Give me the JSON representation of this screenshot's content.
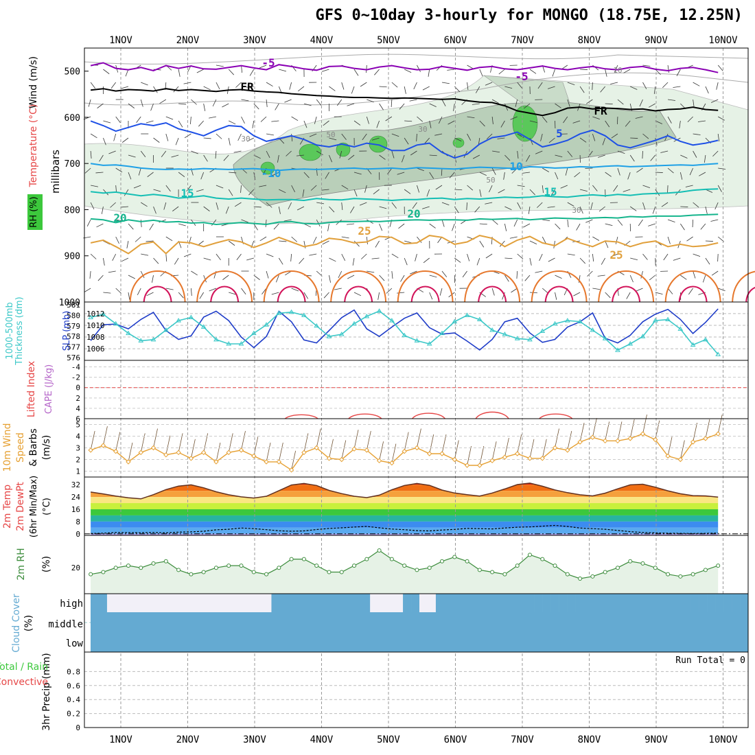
{
  "title": "GFS 0~10day 3-hourly for MONGO (18.75E, 12.25N)",
  "days": [
    "1NOV",
    "2NOV",
    "3NOV",
    "4NOV",
    "5NOV",
    "6NOV",
    "7NOV",
    "8NOV",
    "9NOV",
    "10NOV"
  ],
  "chart_data": [
    {
      "type": "line",
      "panel": "upper-air",
      "ylabel_parts": [
        "Wind (m/s)",
        "Temperature (°C)",
        "RH (%)"
      ],
      "ylabel_axis": "millibars",
      "y_ticks": [
        "500",
        "600",
        "700",
        "800",
        "900",
        "1000"
      ],
      "ylim": [
        450,
        1000
      ],
      "isotherm_labels": [
        "-5",
        "-5",
        "FR",
        "FR",
        "5",
        "-10",
        "10",
        "15",
        "15",
        "20",
        "20",
        "25",
        "25"
      ],
      "rh_labels": [
        "30",
        "50",
        "30",
        "50",
        "10",
        "30"
      ],
      "series": [
        {
          "name": "-5",
          "color": "#8a00b4",
          "values": [
            488,
            482,
            494,
            497,
            492,
            499,
            488,
            494,
            489,
            495,
            496,
            492,
            488,
            493,
            497,
            486,
            490,
            495,
            498,
            490,
            489,
            494,
            497,
            491,
            488,
            493,
            497,
            496,
            490,
            494,
            498,
            492,
            490,
            495,
            497,
            493,
            489,
            494,
            497,
            493,
            490,
            495,
            497,
            492,
            490,
            496,
            499,
            494,
            492,
            497,
            503
          ]
        },
        {
          "name": "FR",
          "color": "#000000",
          "values": [
            541,
            538,
            543,
            540,
            541,
            543,
            538,
            542,
            540,
            542,
            544,
            541,
            540,
            543,
            545,
            546,
            549,
            551,
            553,
            554,
            556,
            557,
            557,
            558,
            559,
            558,
            559,
            560,
            561,
            560,
            564,
            567,
            568,
            575,
            586,
            591,
            596,
            590,
            580,
            578,
            582,
            580,
            581,
            583,
            582,
            586,
            583,
            582,
            578,
            583,
            585
          ]
        },
        {
          "name": "5",
          "color": "#1e50e6",
          "values": [
            608,
            618,
            630,
            622,
            614,
            618,
            612,
            625,
            632,
            640,
            628,
            618,
            620,
            640,
            652,
            646,
            640,
            648,
            660,
            664,
            658,
            664,
            656,
            660,
            672,
            672,
            660,
            656,
            676,
            688,
            680,
            658,
            644,
            640,
            632,
            648,
            664,
            658,
            650,
            636,
            628,
            640,
            660,
            666,
            658,
            650,
            640,
            652,
            660,
            656,
            650
          ]
        },
        {
          "name": "10",
          "color": "#1ea0e6",
          "values": [
            700,
            704,
            703,
            706,
            710,
            712,
            713,
            712,
            713,
            711,
            712,
            713,
            712,
            711,
            713,
            715,
            713,
            712,
            713,
            712,
            711,
            710,
            712,
            711,
            710,
            712,
            709,
            710,
            711,
            712,
            710,
            708,
            709,
            710,
            711,
            707,
            708,
            710,
            709,
            707,
            708,
            706,
            705,
            707,
            706,
            705,
            704,
            703,
            704,
            702,
            700
          ]
        },
        {
          "name": "15",
          "color": "#14beb4",
          "values": [
            761,
            764,
            762,
            766,
            770,
            767,
            770,
            775,
            773,
            770,
            775,
            777,
            775,
            777,
            779,
            778,
            778,
            780,
            776,
            778,
            779,
            776,
            777,
            778,
            780,
            778,
            778,
            776,
            775,
            778,
            776,
            777,
            775,
            773,
            774,
            773,
            770,
            772,
            773,
            770,
            768,
            770,
            767,
            769,
            766,
            765,
            764,
            762,
            758,
            756,
            755
          ]
        },
        {
          "name": "20",
          "color": "#14b48c",
          "values": [
            820,
            822,
            828,
            822,
            826,
            823,
            827,
            826,
            829,
            828,
            832,
            830,
            828,
            830,
            832,
            827,
            826,
            830,
            831,
            828,
            826,
            826,
            825,
            826,
            824,
            823,
            822,
            823,
            822,
            822,
            823,
            820,
            821,
            820,
            819,
            822,
            820,
            818,
            819,
            820,
            818,
            817,
            818,
            815,
            816,
            814,
            814,
            814,
            812,
            811,
            810
          ]
        },
        {
          "name": "25",
          "color": "#e1a03c",
          "values": [
            872,
            866,
            880,
            895,
            875,
            870,
            895,
            870,
            872,
            880,
            872,
            865,
            870,
            882,
            872,
            860,
            870,
            880,
            875,
            862,
            865,
            872,
            870,
            858,
            860,
            874,
            872,
            856,
            860,
            875,
            870,
            856,
            862,
            880,
            866,
            858,
            872,
            878,
            862,
            872,
            880,
            868,
            870,
            880,
            872,
            868,
            880,
            875,
            880,
            878,
            872
          ]
        }
      ]
    },
    {
      "type": "line",
      "panel": "thickness-slp",
      "ylabel_parts": [
        "1000-500mb",
        "Thickness (dm)",
        "SLP (mb)"
      ],
      "thickness_ticks": [
        "576",
        "577",
        "578",
        "579",
        "580",
        "581"
      ],
      "slp_ticks": [
        "1006",
        "1008",
        "1010",
        "1012"
      ],
      "thickness_ylim": [
        576,
        581
      ],
      "slp_ylim": [
        1004.5,
        1013.5
      ],
      "series": [
        {
          "name": "SLP",
          "color": "#1e3cc8",
          "axis": "slp",
          "values": [
            1007.4,
            1010.1,
            1010.2,
            1009.4,
            1011.0,
            1012.2,
            1009.1,
            1007.6,
            1008.2,
            1011.4,
            1012.4,
            1010.8,
            1008.0,
            1006.2,
            1008.1,
            1012.4,
            1010.6,
            1007.5,
            1007.0,
            1009.1,
            1011.3,
            1012.6,
            1009.4,
            1008.1,
            1009.7,
            1011.2,
            1012.1,
            1009.6,
            1008.5,
            1008.7,
            1007.3,
            1005.8,
            1007.6,
            1010.6,
            1011.2,
            1008.7,
            1007.1,
            1007.6,
            1009.7,
            1010.6,
            1012.1,
            1007.8,
            1007.0,
            1008.3,
            1010.6,
            1011.9,
            1012.7,
            1011.0,
            1008.6,
            1010.5,
            1012.8
          ]
        },
        {
          "name": "Thickness",
          "color": "#3cc8c8",
          "axis": "thickness",
          "values": [
            579.8,
            580.1,
            579.2,
            578.3,
            577.6,
            577.7,
            578.6,
            579.5,
            579.8,
            578.9,
            577.7,
            577.3,
            577.3,
            578.3,
            579.1,
            580.2,
            580.3,
            580.0,
            579.0,
            578.0,
            578.2,
            579.2,
            579.9,
            580.4,
            579.5,
            578.1,
            577.6,
            577.3,
            578.3,
            579.4,
            580.0,
            579.6,
            578.6,
            578.2,
            577.8,
            577.7,
            578.5,
            579.2,
            579.5,
            579.4,
            578.6,
            577.8,
            576.7,
            577.3,
            578.0,
            579.5,
            579.6,
            578.7,
            577.2,
            577.7,
            576.3
          ]
        }
      ]
    },
    {
      "type": "line",
      "panel": "li-cape",
      "ylabel_parts": [
        "CAPE (J/kg)",
        "Lifted Index"
      ],
      "y_ticks": [
        "-4",
        "-2",
        "0",
        "2",
        "4",
        "6"
      ],
      "ylim": [
        -5,
        6
      ],
      "series": [
        {
          "name": "Lifted Index",
          "color": "#e64646",
          "values": [
            null,
            null,
            null,
            null,
            null,
            null,
            null,
            null,
            null,
            null,
            null,
            null,
            null,
            null,
            null,
            null,
            null,
            null,
            null,
            null,
            null,
            null,
            null,
            null,
            null,
            null,
            null,
            null,
            null,
            null,
            null,
            null,
            null,
            null,
            null,
            null,
            null,
            null,
            null,
            null,
            null,
            null,
            null,
            null,
            null,
            null,
            null,
            null,
            null,
            null,
            null
          ]
        }
      ],
      "bumps": [
        {
          "x_day": 3.7,
          "value": 5.0
        },
        {
          "x_day": 4.65,
          "value": 4.8
        },
        {
          "x_day": 5.6,
          "value": 4.6
        },
        {
          "x_day": 6.55,
          "value": 4.3
        },
        {
          "x_day": 7.5,
          "value": 4.8
        }
      ]
    },
    {
      "type": "line",
      "panel": "10m-wind",
      "ylabel_parts": [
        "10m Wind",
        "Speed",
        "& Barbs",
        "(m/s)"
      ],
      "y_ticks": [
        "1",
        "2",
        "3",
        "4",
        "5"
      ],
      "ylim": [
        0.5,
        5.5
      ],
      "series": [
        {
          "name": "Speed",
          "color": "#e6a032",
          "values": [
            2.8,
            3.2,
            2.7,
            1.8,
            2.6,
            3.0,
            2.4,
            2.6,
            2.1,
            2.6,
            1.8,
            2.6,
            2.8,
            2.3,
            1.8,
            1.8,
            1.1,
            2.6,
            3.0,
            2.1,
            2.0,
            2.9,
            2.8,
            1.9,
            1.7,
            2.7,
            3.0,
            2.5,
            2.5,
            2.0,
            1.5,
            1.5,
            1.9,
            2.2,
            2.5,
            2.1,
            2.1,
            3.0,
            2.8,
            3.5,
            3.9,
            3.6,
            3.6,
            3.8,
            4.2,
            3.7,
            2.3,
            2.0,
            3.5,
            3.8,
            4.2
          ]
        }
      ]
    },
    {
      "type": "area",
      "panel": "2m-temp",
      "ylabel_parts": [
        "2m Temp",
        "2m DewPt",
        "(6hr Min/Max)",
        "(°C)"
      ],
      "y_ticks": [
        "0",
        "8",
        "16",
        "24",
        "32"
      ],
      "ylim": [
        -1,
        37
      ],
      "series": [
        {
          "name": "Temp",
          "color": "#603020",
          "values": [
            27.2,
            26.0,
            24.6,
            23.5,
            22.8,
            25.5,
            28.8,
            31.1,
            31.9,
            30.0,
            27.4,
            25.4,
            24.1,
            23.3,
            24.5,
            28.1,
            31.8,
            32.8,
            31.5,
            28.3,
            26.2,
            24.5,
            23.6,
            25.2,
            28.7,
            31.5,
            32.8,
            31.6,
            28.5,
            26.6,
            25.5,
            24.6,
            26.6,
            29.2,
            32.1,
            33.0,
            31.0,
            28.6,
            26.8,
            25.4,
            24.7,
            26.5,
            29.3,
            31.9,
            32.3,
            30.4,
            28.0,
            26.1,
            24.9,
            24.7,
            23.9
          ]
        },
        {
          "name": "DewPt",
          "color": "#000000",
          "values": [
            0.2,
            0.4,
            0.9,
            0.8,
            0.7,
            0.9,
            0.6,
            1.1,
            1.3,
            1.7,
            2.6,
            3.0,
            3.8,
            3.4,
            2.7,
            2.0,
            1.7,
            1.9,
            2.8,
            3.5,
            3.9,
            4.4,
            4.8,
            3.9,
            3.1,
            2.7,
            2.1,
            1.9,
            2.5,
            2.9,
            3.5,
            3.4,
            3.2,
            3.8,
            4.3,
            4.5,
            5.0,
            5.5,
            4.8,
            3.8,
            3.4,
            3.0,
            2.2,
            1.4,
            0.9,
            0.6,
            0.4,
            0.3,
            0.2,
            0.3,
            0.5
          ]
        }
      ]
    },
    {
      "type": "area",
      "panel": "2m-rh",
      "ylabel_parts": [
        "2m RH",
        "(%)"
      ],
      "y_ticks": [
        "20"
      ],
      "ylim": [
        8,
        35
      ],
      "series": [
        {
          "name": "RH",
          "color": "#3c8c3c",
          "values": [
            17,
            18,
            20,
            21,
            20,
            22,
            23,
            19,
            17,
            18,
            20,
            21,
            21,
            18,
            17,
            20,
            24,
            24,
            21,
            18,
            18,
            21,
            24,
            28,
            24,
            21,
            19,
            20,
            23,
            25,
            23,
            19,
            18,
            17,
            21,
            26,
            24,
            21,
            17,
            15,
            16,
            18,
            20,
            23,
            22,
            20,
            17,
            16,
            17,
            19,
            21
          ]
        }
      ]
    },
    {
      "type": "bar",
      "panel": "cloud-cover",
      "ylabel_parts": [
        "Cloud Cover",
        "(%)"
      ],
      "y_ticks": [
        "high",
        "middle",
        "low"
      ],
      "series": [
        {
          "name": "high",
          "color": "#64aad2",
          "values": [
            100,
            75,
            0,
            0,
            10,
            0,
            5,
            0,
            0,
            0,
            0,
            0,
            0,
            0,
            0,
            0,
            0,
            0,
            0,
            0,
            0,
            0,
            100,
            100,
            100,
            100,
            100,
            100,
            100,
            100,
            100,
            100,
            100,
            100,
            0,
            0,
            0,
            10,
            100,
            100,
            0,
            0,
            100,
            100,
            100,
            100,
            100,
            100,
            100,
            100,
            100,
            100,
            100,
            100,
            100,
            100,
            100,
            100,
            100,
            100,
            100,
            100,
            100,
            100,
            100,
            100,
            100,
            100,
            100,
            100,
            100,
            100,
            100,
            100,
            100,
            100,
            100,
            100,
            100,
            100
          ]
        }
      ]
    },
    {
      "type": "bar",
      "panel": "precip",
      "ylabel_parts": [
        "3hr Precip (mm)"
      ],
      "legend_parts": [
        "Total / Rain",
        "Convective"
      ],
      "y_ticks": [
        "0",
        "0.2",
        "0.4",
        "0.6",
        "0.8"
      ],
      "ylim": [
        0,
        1
      ],
      "run_total_label": "Run Total = 0",
      "series": [
        {
          "name": "Total",
          "color": "#3cc83c",
          "values": []
        }
      ]
    }
  ]
}
